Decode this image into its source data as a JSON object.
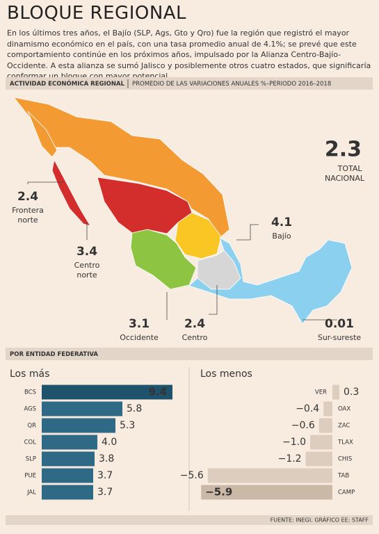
{
  "header": {
    "title": "BLOQUE REGIONAL",
    "intro": "En los últimos tres años, el Bajío (SLP, Ags, Gto y Qro) fue la región que registró el mayor dinamismo económico en el país, con una tasa promedio anual de 4.1%; se prevé que este comportamiento continúe en los próximos años, impulsado por la Alianza Centro-Bajío-Occidente. A esta alianza se sumó Jalisco y posiblemente otros cuatro estados, que significaría conformar un bloque con mayor potencial."
  },
  "map": {
    "section": "ACTIVIDAD ECONÓMICA REGIONAL",
    "subtitle": "PROMEDIO DE LAS VARIACIONES ANUALES %–PERIODO 2016–2018",
    "total": {
      "value": 2.3,
      "label": "TOTAL NACIONAL"
    },
    "regions": [
      {
        "name": "Frontera norte",
        "value": 2.4,
        "color": "#f39a33"
      },
      {
        "name": "Centro norte",
        "value": 3.4,
        "color": "#d42e2c"
      },
      {
        "name": "Bajío",
        "value": 4.1,
        "color": "#f9c623"
      },
      {
        "name": "Occidente",
        "value": 3.1,
        "color": "#8dc543"
      },
      {
        "name": "Centro",
        "value": 2.4,
        "color": "#d6d6d6"
      },
      {
        "name": "Sur-sureste",
        "value": 0.01,
        "color": "#8bd0ef"
      }
    ]
  },
  "section2": "POR ENTIDAD FEDERATIVA",
  "chart_data": [
    {
      "type": "bar",
      "title": "Los más",
      "color": "#2e6a86",
      "highlight_color": "#1f536b",
      "categories": [
        "BCS",
        "AGS",
        "QR",
        "COL",
        "SLP",
        "PUE",
        "JAL"
      ],
      "values": [
        9.4,
        5.8,
        5.3,
        4.0,
        3.8,
        3.7,
        3.7
      ],
      "value_labels": [
        "9.4",
        "5.8",
        "5.3",
        "4.0",
        "3.8",
        "3.7",
        "3.7"
      ]
    },
    {
      "type": "bar",
      "title": "Los menos",
      "color": "#dccdbf",
      "highlight_color": "#cbb9a8",
      "categories": [
        "VER",
        "OAX",
        "ZAC",
        "TLAX",
        "CHIS",
        "TAB",
        "CAMP"
      ],
      "values": [
        0.3,
        -0.4,
        -0.6,
        -1.0,
        -1.2,
        -5.6,
        -5.9
      ],
      "value_labels": [
        "0.3",
        "−0.4",
        "−0.6",
        "−1.0",
        "−1.2",
        "−5.6",
        "−5.9"
      ]
    }
  ],
  "footer": "FUENTE: INEGI. GRÁFICO EE: STAFF"
}
